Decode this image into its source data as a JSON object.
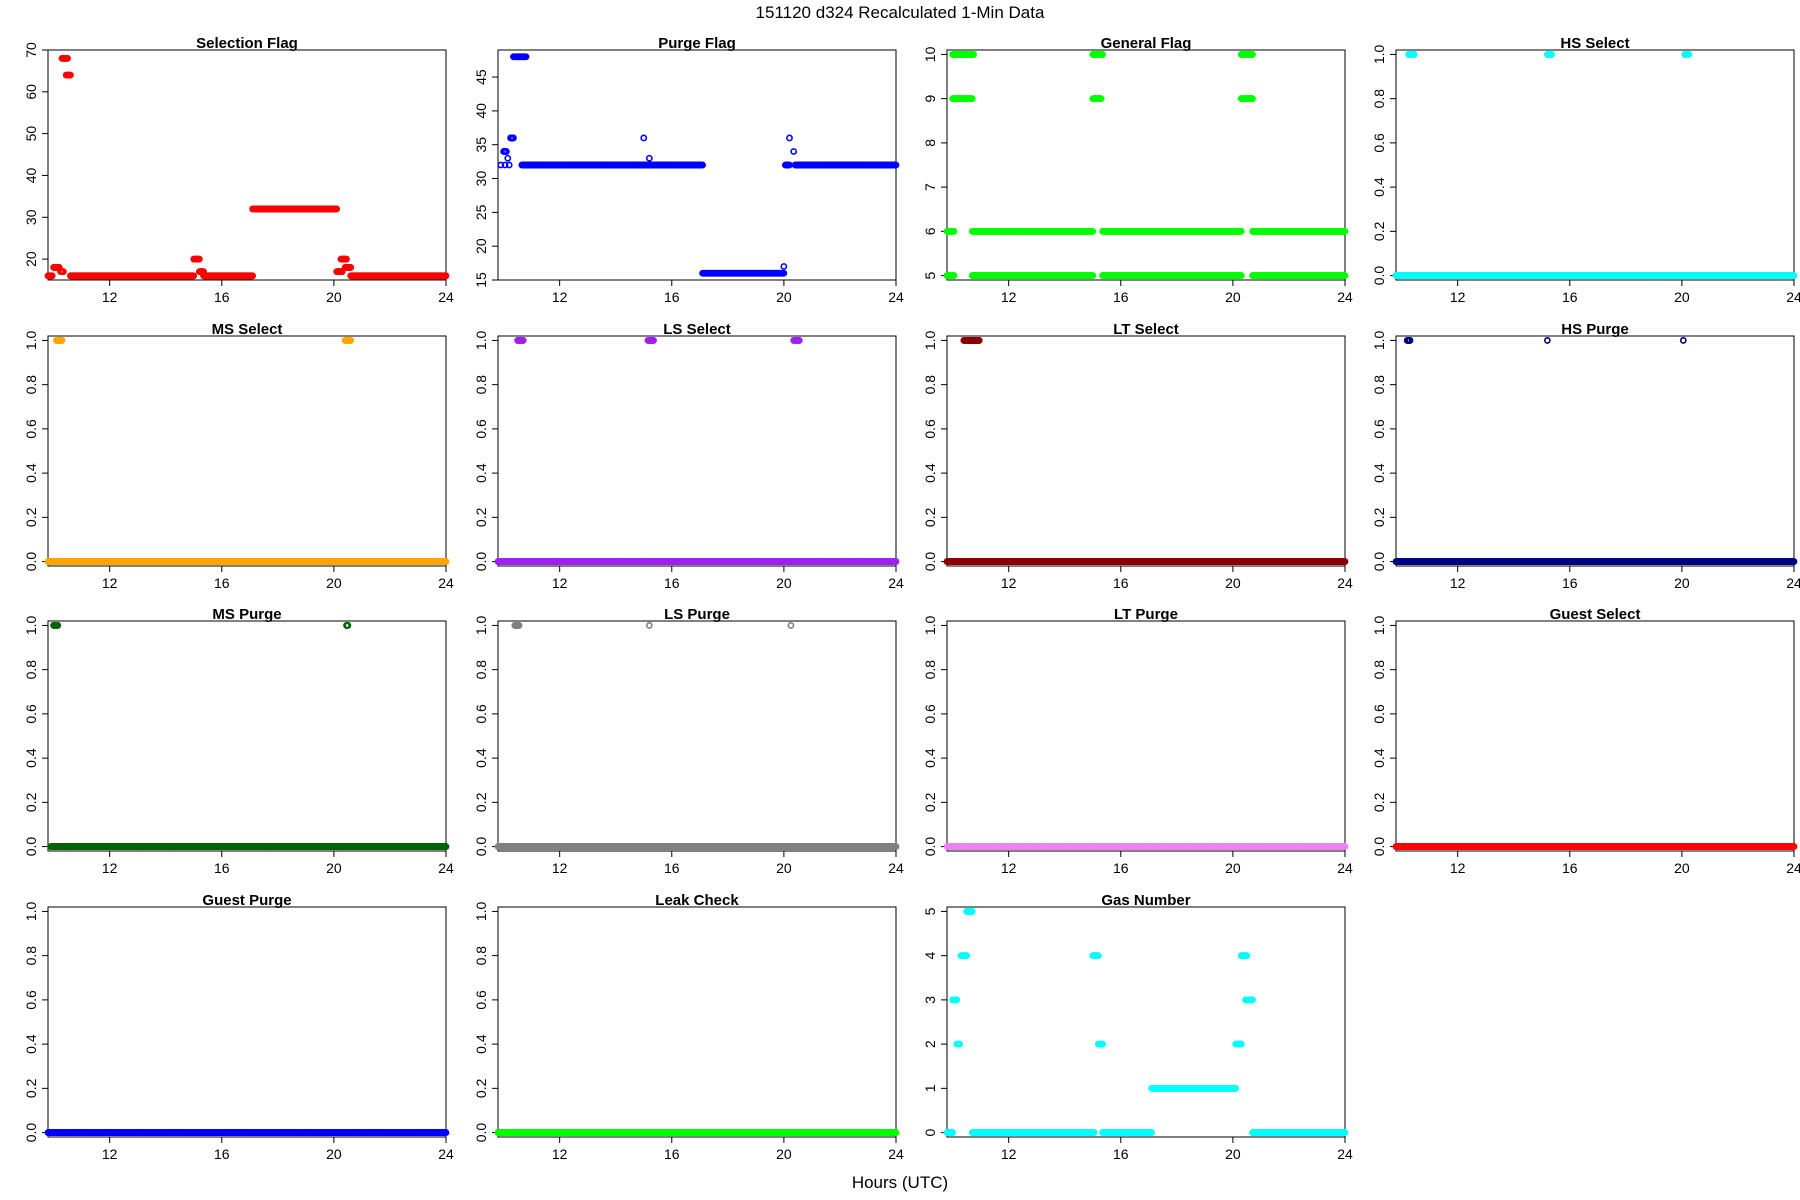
{
  "figure": {
    "title": "151120   d324   Recalculated 1-Min Data",
    "xlabel": "Hours (UTC)"
  },
  "chart_data": [
    {
      "type": "scatter",
      "title": "Selection Flag",
      "color": "#ff0000",
      "ylim": [
        15,
        70
      ],
      "yticks": [
        20,
        30,
        40,
        50,
        60,
        70
      ],
      "xlim": [
        9.8,
        24
      ],
      "xticks": [
        12,
        16,
        20,
        24
      ],
      "segments": [
        [
          9.8,
          9.95,
          16
        ],
        [
          10.0,
          10.2,
          18
        ],
        [
          10.25,
          10.35,
          17
        ],
        [
          10.3,
          10.5,
          68
        ],
        [
          10.45,
          10.6,
          64
        ],
        [
          10.6,
          15.0,
          16
        ],
        [
          15.0,
          15.2,
          20
        ],
        [
          15.2,
          15.35,
          17
        ],
        [
          15.35,
          17.1,
          16
        ],
        [
          17.1,
          20.1,
          32
        ],
        [
          20.1,
          20.3,
          17
        ],
        [
          20.25,
          20.45,
          20
        ],
        [
          20.4,
          20.6,
          18
        ],
        [
          20.6,
          24.0,
          16
        ]
      ]
    },
    {
      "type": "scatter",
      "title": "Purge Flag",
      "color": "#0000ff",
      "ylim": [
        15,
        49
      ],
      "yticks": [
        15,
        20,
        25,
        30,
        35,
        40,
        45
      ],
      "xlim": [
        9.8,
        24
      ],
      "xticks": [
        12,
        16,
        20,
        24
      ],
      "segments": [
        [
          9.9,
          9.9,
          32
        ],
        [
          10.0,
          10.1,
          34
        ],
        [
          10.05,
          10.05,
          32
        ],
        [
          10.15,
          10.15,
          33
        ],
        [
          10.2,
          10.2,
          32
        ],
        [
          10.25,
          10.35,
          36
        ],
        [
          10.35,
          10.8,
          48
        ],
        [
          10.65,
          17.1,
          32
        ],
        [
          15.0,
          15.0,
          36
        ],
        [
          15.2,
          15.2,
          33
        ],
        [
          17.1,
          20.0,
          16
        ],
        [
          20.0,
          20.0,
          17
        ],
        [
          20.05,
          20.2,
          32
        ],
        [
          20.2,
          20.2,
          36
        ],
        [
          20.35,
          20.35,
          34
        ],
        [
          20.4,
          24.0,
          32
        ]
      ]
    },
    {
      "type": "scatter",
      "title": "General Flag",
      "color": "#00ff00",
      "ylim": [
        4.9,
        10.1
      ],
      "yticks": [
        5,
        6,
        7,
        8,
        9,
        10
      ],
      "xlim": [
        9.8,
        24
      ],
      "xticks": [
        12,
        16,
        20,
        24
      ],
      "segments": [
        [
          9.8,
          10.05,
          6
        ],
        [
          9.8,
          10.05,
          5
        ],
        [
          10.0,
          10.75,
          10
        ],
        [
          10.0,
          10.7,
          9
        ],
        [
          10.7,
          15.0,
          6
        ],
        [
          10.7,
          15.0,
          5
        ],
        [
          15.0,
          15.35,
          10
        ],
        [
          15.0,
          15.3,
          9
        ],
        [
          15.35,
          20.3,
          6
        ],
        [
          15.35,
          20.3,
          5
        ],
        [
          20.3,
          20.7,
          10
        ],
        [
          20.3,
          20.7,
          9
        ],
        [
          20.7,
          24.0,
          6
        ],
        [
          20.7,
          24.0,
          5
        ]
      ]
    },
    {
      "type": "scatter",
      "title": "HS Select",
      "color": "#00ffff",
      "ylim": [
        -0.02,
        1.02
      ],
      "yticks": [
        0,
        0.2,
        0.4,
        0.6,
        0.8,
        1.0
      ],
      "xlim": [
        9.8,
        24
      ],
      "xticks": [
        12,
        16,
        20,
        24
      ],
      "segments": [
        [
          10.25,
          10.45,
          1
        ],
        [
          15.2,
          15.35,
          1
        ],
        [
          20.1,
          20.25,
          1
        ],
        [
          9.8,
          24.0,
          0
        ]
      ]
    },
    {
      "type": "scatter",
      "title": "MS Select",
      "color": "#ffa500",
      "ylim": [
        -0.02,
        1.02
      ],
      "yticks": [
        0,
        0.2,
        0.4,
        0.6,
        0.8,
        1.0
      ],
      "xlim": [
        9.8,
        24
      ],
      "xticks": [
        12,
        16,
        20,
        24
      ],
      "segments": [
        [
          10.1,
          10.3,
          1
        ],
        [
          20.4,
          20.6,
          1
        ],
        [
          9.8,
          24.0,
          0
        ]
      ]
    },
    {
      "type": "scatter",
      "title": "LS Select",
      "color": "#a020f0",
      "ylim": [
        -0.02,
        1.02
      ],
      "yticks": [
        0,
        0.2,
        0.4,
        0.6,
        0.8,
        1.0
      ],
      "xlim": [
        9.8,
        24
      ],
      "xticks": [
        12,
        16,
        20,
        24
      ],
      "segments": [
        [
          10.5,
          10.7,
          1
        ],
        [
          15.15,
          15.35,
          1
        ],
        [
          20.35,
          20.55,
          1
        ],
        [
          9.8,
          24.0,
          0
        ]
      ]
    },
    {
      "type": "scatter",
      "title": "LT Select",
      "color": "#8b0000",
      "ylim": [
        -0.02,
        1.02
      ],
      "yticks": [
        0,
        0.2,
        0.4,
        0.6,
        0.8,
        1.0
      ],
      "xlim": [
        9.8,
        24
      ],
      "xticks": [
        12,
        16,
        20,
        24
      ],
      "segments": [
        [
          10.4,
          10.95,
          1
        ],
        [
          9.8,
          24.0,
          0
        ]
      ]
    },
    {
      "type": "scatter",
      "title": "HS Purge",
      "color": "#000080",
      "ylim": [
        -0.02,
        1.02
      ],
      "yticks": [
        0,
        0.2,
        0.4,
        0.6,
        0.8,
        1.0
      ],
      "xlim": [
        9.8,
        24
      ],
      "xticks": [
        12,
        16,
        20,
        24
      ],
      "segments": [
        [
          10.2,
          10.3,
          1
        ],
        [
          15.2,
          15.2,
          1
        ],
        [
          20.05,
          20.05,
          1
        ],
        [
          9.8,
          24.0,
          0
        ]
      ]
    },
    {
      "type": "scatter",
      "title": "MS Purge",
      "color": "#006400",
      "ylim": [
        -0.02,
        1.02
      ],
      "yticks": [
        0,
        0.2,
        0.4,
        0.6,
        0.8,
        1.0
      ],
      "xlim": [
        9.8,
        24
      ],
      "xticks": [
        12,
        16,
        20,
        24
      ],
      "segments": [
        [
          10.0,
          10.15,
          1
        ],
        [
          20.45,
          20.5,
          1
        ],
        [
          9.9,
          24.0,
          0
        ]
      ]
    },
    {
      "type": "scatter",
      "title": "LS Purge",
      "color": "#808080",
      "ylim": [
        -0.02,
        1.02
      ],
      "yticks": [
        0,
        0.2,
        0.4,
        0.6,
        0.8,
        1.0
      ],
      "xlim": [
        9.8,
        24
      ],
      "xticks": [
        12,
        16,
        20,
        24
      ],
      "segments": [
        [
          10.4,
          10.55,
          1
        ],
        [
          15.2,
          15.2,
          1
        ],
        [
          20.25,
          20.25,
          1
        ],
        [
          9.8,
          24.0,
          0
        ]
      ]
    },
    {
      "type": "scatter",
      "title": "LT Purge",
      "color": "#ee82ee",
      "ylim": [
        -0.02,
        1.02
      ],
      "yticks": [
        0,
        0.2,
        0.4,
        0.6,
        0.8,
        1.0
      ],
      "xlim": [
        9.8,
        24
      ],
      "xticks": [
        12,
        16,
        20,
        24
      ],
      "segments": [
        [
          9.8,
          24.0,
          0
        ]
      ]
    },
    {
      "type": "scatter",
      "title": "Guest Select",
      "color": "#ff0000",
      "ylim": [
        -0.02,
        1.02
      ],
      "yticks": [
        0,
        0.2,
        0.4,
        0.6,
        0.8,
        1.0
      ],
      "xlim": [
        9.8,
        24
      ],
      "xticks": [
        12,
        16,
        20,
        24
      ],
      "segments": [
        [
          9.8,
          24.0,
          0
        ]
      ]
    },
    {
      "type": "scatter",
      "title": "Guest Purge",
      "color": "#0000ff",
      "ylim": [
        -0.02,
        1.02
      ],
      "yticks": [
        0,
        0.2,
        0.4,
        0.6,
        0.8,
        1.0
      ],
      "xlim": [
        9.8,
        24
      ],
      "xticks": [
        12,
        16,
        20,
        24
      ],
      "segments": [
        [
          9.8,
          24.0,
          0
        ]
      ]
    },
    {
      "type": "scatter",
      "title": "Leak Check",
      "color": "#00ff00",
      "ylim": [
        -0.02,
        1.02
      ],
      "yticks": [
        0,
        0.2,
        0.4,
        0.6,
        0.8,
        1.0
      ],
      "xlim": [
        9.8,
        24
      ],
      "xticks": [
        12,
        16,
        20,
        24
      ],
      "segments": [
        [
          9.8,
          24.0,
          0
        ]
      ]
    },
    {
      "type": "scatter",
      "title": "Gas Number",
      "color": "#00ffff",
      "ylim": [
        -0.1,
        5.1
      ],
      "yticks": [
        0,
        1,
        2,
        3,
        4,
        5
      ],
      "xlim": [
        9.8,
        24
      ],
      "xticks": [
        12,
        16,
        20,
        24
      ],
      "segments": [
        [
          9.8,
          10.0,
          0
        ],
        [
          10.0,
          10.15,
          3
        ],
        [
          10.15,
          10.25,
          2
        ],
        [
          10.3,
          10.5,
          4
        ],
        [
          10.5,
          10.7,
          5
        ],
        [
          10.7,
          15.05,
          0
        ],
        [
          15.0,
          15.2,
          4
        ],
        [
          15.2,
          15.35,
          2
        ],
        [
          15.35,
          17.1,
          0
        ],
        [
          17.1,
          20.1,
          1
        ],
        [
          20.1,
          20.3,
          2
        ],
        [
          20.3,
          20.5,
          4
        ],
        [
          20.45,
          20.7,
          3
        ],
        [
          20.7,
          24.0,
          0
        ]
      ]
    }
  ]
}
